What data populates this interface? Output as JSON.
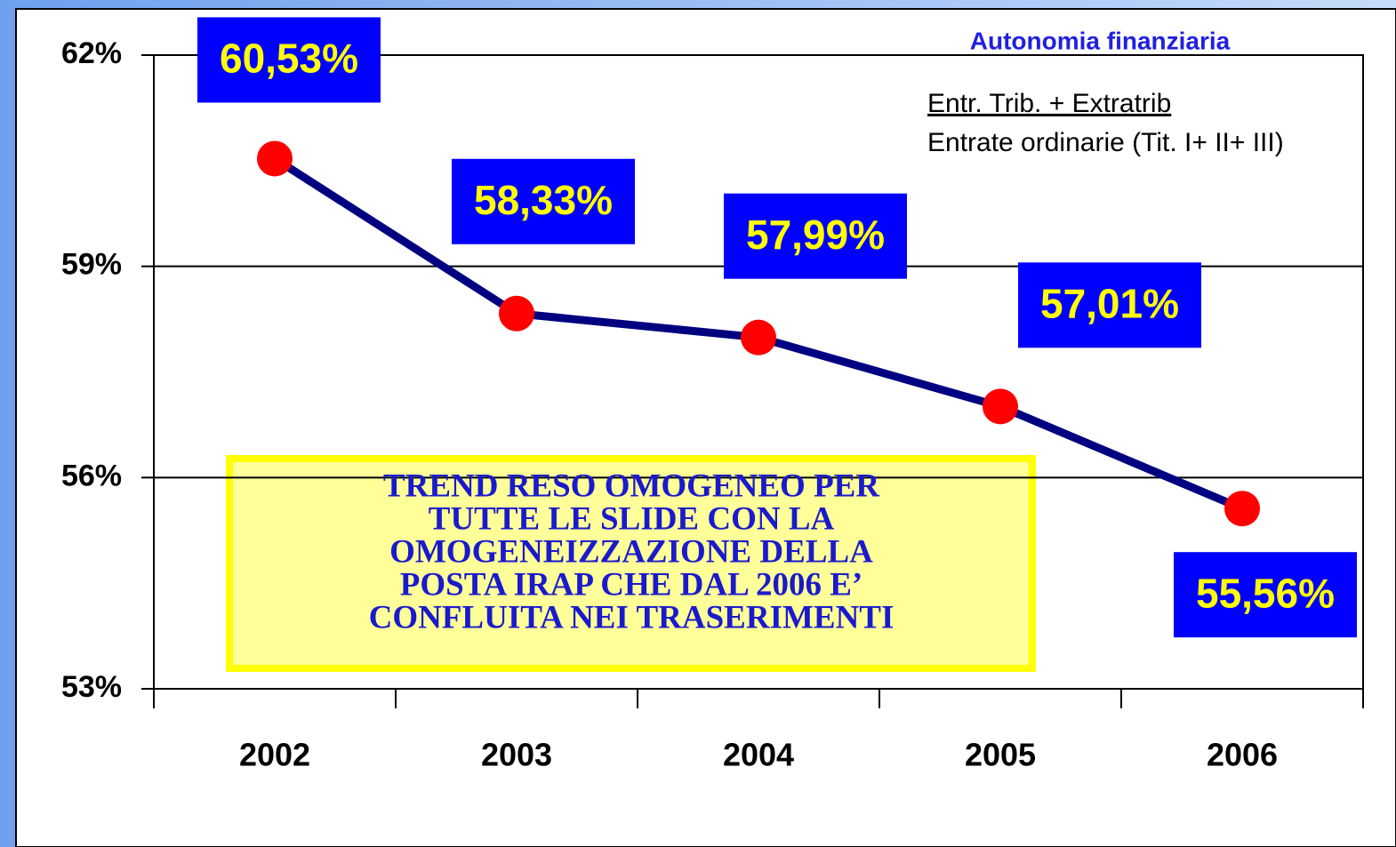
{
  "chart_data": {
    "type": "line",
    "title": "Autonomia finanziaria",
    "subtitle_lines": [
      "Entr. Trib. + Extratrib",
      "Entrate ordinarie (Tit. I+ II+ III)"
    ],
    "annotation": [
      "TREND RESO OMOGENEO PER",
      "TUTTE LE SLIDE CON LA",
      "OMOGENEIZZAZIONE  DELLA",
      "POSTA IRAP CHE DAL 2006 E’",
      "CONFLUITA NEI TRASERIMENTI"
    ],
    "categories": [
      "2002",
      "2003",
      "2004",
      "2005",
      "2006"
    ],
    "series": [
      {
        "name": "Autonomia finanziaria",
        "color": "#000080",
        "marker_color": "#ff0000",
        "values": [
          60.53,
          58.33,
          57.99,
          57.01,
          55.56
        ],
        "value_labels": [
          "60,53%",
          "58,33%",
          "57,99%",
          "57,01%",
          "55,56%"
        ]
      }
    ],
    "ylim": [
      53,
      62
    ],
    "yticks": [
      {
        "value": 53,
        "label": "53%"
      },
      {
        "value": 56,
        "label": "56%"
      },
      {
        "value": 59,
        "label": "59%"
      },
      {
        "value": 62,
        "label": "62%"
      }
    ],
    "grid": true
  }
}
